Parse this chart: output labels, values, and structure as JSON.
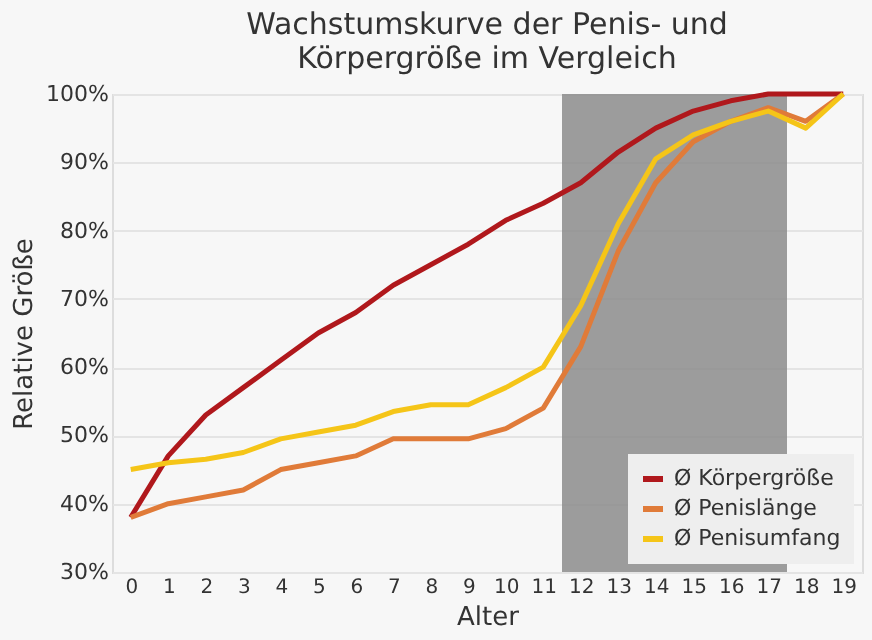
{
  "chart_data": {
    "type": "line",
    "title": [
      "Wachstumskurve der Penis- und",
      "Körpergröße im Vergleich"
    ],
    "xlabel": "Alter",
    "ylabel": "Relative Größe",
    "x": [
      0,
      1,
      2,
      3,
      4,
      5,
      6,
      7,
      8,
      9,
      10,
      11,
      12,
      13,
      14,
      15,
      16,
      17,
      18,
      19
    ],
    "series": [
      {
        "name": "Ø Körpergröße",
        "color": "#b0181c",
        "values": [
          38,
          47,
          53,
          57,
          61,
          65,
          68,
          72,
          75,
          78,
          81.5,
          84,
          87,
          91.5,
          95,
          97.5,
          99,
          100,
          100,
          100
        ]
      },
      {
        "name": "Ø Penislänge",
        "color": "#e07b39",
        "values": [
          38,
          40,
          41,
          42,
          45,
          46,
          47,
          49.5,
          49.5,
          49.5,
          51,
          54,
          63,
          77,
          87,
          93,
          96,
          98,
          96,
          100
        ]
      },
      {
        "name": "Ø Penisumfang",
        "color": "#f5c518",
        "values": [
          45,
          46,
          46.5,
          47.5,
          49.5,
          50.5,
          51.5,
          53.5,
          54.5,
          54.5,
          57,
          60,
          69,
          81,
          90.5,
          94,
          96,
          97.5,
          95,
          100
        ]
      }
    ],
    "xlim": [
      -0.5,
      19.5
    ],
    "xticks": [
      0,
      1,
      2,
      3,
      4,
      5,
      6,
      7,
      8,
      9,
      10,
      11,
      12,
      13,
      14,
      15,
      16,
      17,
      18,
      19
    ],
    "ylim": [
      30,
      100
    ],
    "yticks": [
      {
        "value": 30,
        "label": "30%"
      },
      {
        "value": 40,
        "label": "40%"
      },
      {
        "value": 50,
        "label": "50%"
      },
      {
        "value": 60,
        "label": "60%"
      },
      {
        "value": 70,
        "label": "70%"
      },
      {
        "value": 80,
        "label": "80%"
      },
      {
        "value": 90,
        "label": "90%"
      },
      {
        "value": 100,
        "label": "100%"
      }
    ],
    "bands": [
      {
        "axis": "x",
        "from": 11.5,
        "to": 17.5,
        "color": "#8c8c8c"
      }
    ],
    "grid": "y",
    "legend": "bottom right",
    "marker": "none",
    "line_style": "solid"
  }
}
